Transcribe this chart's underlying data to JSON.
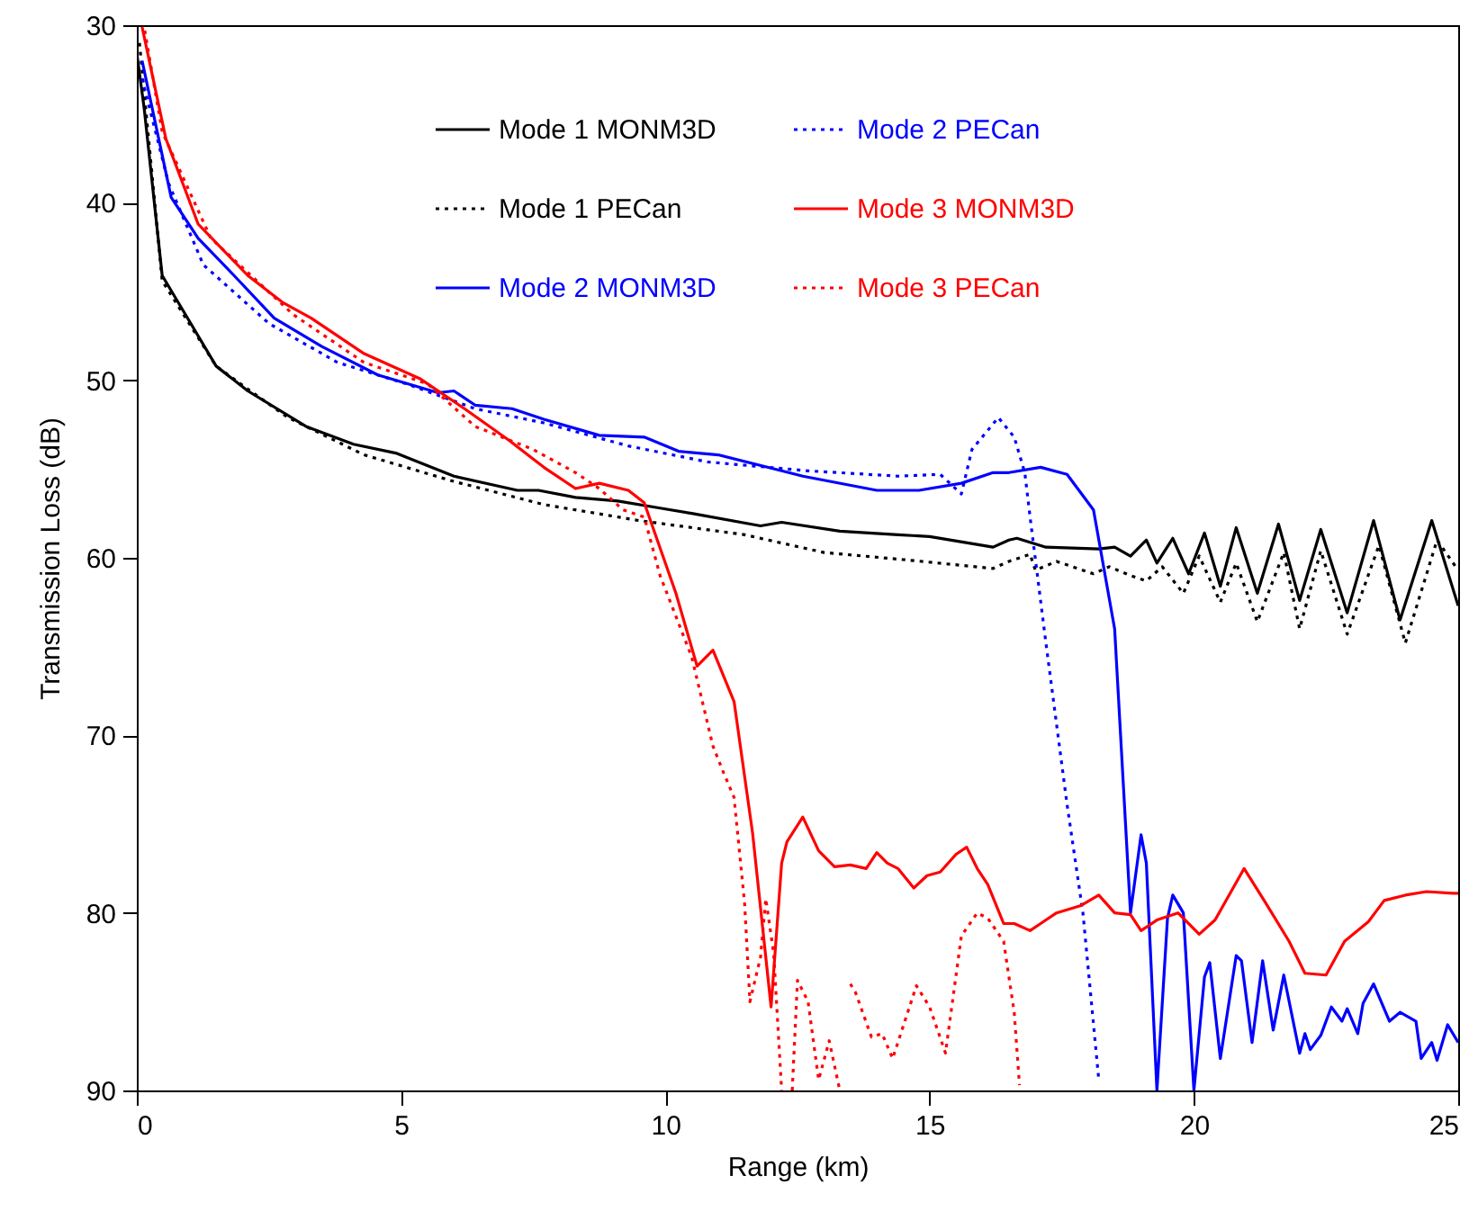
{
  "chart_data": {
    "type": "line",
    "xlabel": "Range (km)",
    "ylabel": "Transmission Loss (dB)",
    "xlim": [
      0,
      25
    ],
    "xticks": [
      0,
      5,
      10,
      15,
      20,
      25
    ],
    "ylim": [
      90,
      30
    ],
    "yticks": [
      30,
      40,
      50,
      60,
      70,
      80,
      90
    ],
    "grid": false,
    "legend": "top",
    "marker": "none",
    "series": [
      {
        "name": "Mode 1 MONM3D",
        "color": "#000000",
        "line_style": "solid",
        "x": [
          0,
          0.14,
          0.48,
          0.82,
          1.5,
          2.1,
          3.2,
          4.1,
          4.9,
          6.0,
          7.2,
          7.6,
          8.3,
          9.1,
          9.9,
          10.5,
          11.8,
          12.2,
          13.3,
          14.4,
          15.0,
          16.2,
          16.5,
          16.65,
          17.2,
          18.2,
          18.5,
          18.8,
          19.1,
          19.3,
          19.6,
          19.9,
          20.2,
          20.5,
          20.8,
          21.2,
          21.6,
          22.0,
          22.4,
          22.9,
          23.4,
          23.9,
          24.5,
          25
        ],
        "values": [
          31.6,
          34.7,
          44.1,
          45.8,
          49.2,
          50.6,
          52.6,
          53.6,
          54.1,
          55.4,
          56.2,
          56.2,
          56.6,
          56.8,
          57.2,
          57.5,
          58.2,
          58,
          58.5,
          58.7,
          58.8,
          59.4,
          59,
          58.9,
          59.4,
          59.5,
          59.4,
          59.9,
          59,
          60.3,
          58.9,
          60.9,
          58.6,
          61.6,
          58.3,
          62,
          58.1,
          62.4,
          58.4,
          63.1,
          57.9,
          63.5,
          57.9,
          62.7
        ]
      },
      {
        "name": "Mode 1 PECan",
        "color": "#000000",
        "line_style": "dotted",
        "x": [
          0.05,
          0.48,
          1.5,
          2.1,
          2.86,
          4.3,
          6.0,
          7.7,
          9.5,
          11.5,
          13,
          14.5,
          16.2,
          16.5,
          16.9,
          17,
          17.4,
          18.1,
          18.4,
          18.8,
          19.1,
          19.4,
          19.8,
          20.1,
          20.5,
          20.8,
          21.2,
          21.7,
          22.0,
          22.4,
          22.9,
          23.5,
          24.0,
          24.6,
          25
        ],
        "values": [
          31,
          44.4,
          49.2,
          50.5,
          52.1,
          54.2,
          55.7,
          57,
          57.9,
          58.7,
          59.7,
          60.1,
          60.6,
          60.2,
          59.8,
          60.7,
          60.2,
          60.9,
          60.5,
          61,
          61.3,
          60.5,
          62,
          59.9,
          62.5,
          60.3,
          63.6,
          59.7,
          64,
          59.6,
          64.3,
          59.3,
          64.8,
          59,
          60.7
        ]
      },
      {
        "name": "Mode 2 MONM3D",
        "color": "#0000ff",
        "line_style": "solid",
        "x": [
          0.1,
          0.65,
          1.16,
          1.84,
          2.6,
          3.5,
          4.56,
          5.7,
          6.0,
          6.4,
          7.1,
          7.7,
          8.75,
          9.6,
          10.25,
          11.0,
          12.2,
          12.6,
          14.0,
          14.8,
          15.6,
          16.2,
          16.5,
          17.1,
          17.6,
          18.1,
          18.5,
          18.8,
          19.0,
          19.1,
          19.3,
          19.5,
          19.6,
          19.8,
          20.0,
          20.2,
          20.3,
          20.5,
          20.8,
          20.9,
          21.1,
          21.3,
          21.5,
          21.7,
          22.0,
          22.1,
          22.2,
          22.4,
          22.6,
          22.8,
          22.9,
          23.1,
          23.2,
          23.4,
          23.7,
          23.9,
          24.2,
          24.3,
          24.5,
          24.6,
          24.8,
          25
        ],
        "values": [
          32,
          39.7,
          42,
          44.1,
          46.5,
          48.1,
          49.7,
          50.7,
          50.6,
          51.4,
          51.6,
          52.2,
          53.1,
          53.2,
          54,
          54.2,
          55.1,
          55.4,
          56.2,
          56.2,
          55.8,
          55.2,
          55.2,
          54.9,
          55.3,
          57.3,
          64,
          80,
          75.6,
          77.2,
          90,
          80.3,
          79,
          80,
          90,
          83.6,
          82.8,
          88.2,
          82.4,
          82.7,
          87.3,
          82.7,
          86.6,
          83.5,
          87.9,
          86.8,
          87.7,
          86.9,
          85.3,
          86.1,
          85.4,
          86.8,
          85.1,
          84,
          86.1,
          85.6,
          86.1,
          88.2,
          87.3,
          88.3,
          86.3,
          87.3
        ]
      },
      {
        "name": "Mode 2 PECan",
        "color": "#0000ff",
        "line_style": "dotted",
        "x": [
          0.1,
          0.6,
          1.26,
          2.5,
          3.8,
          5.1,
          6.4,
          7.7,
          9.3,
          10.8,
          12.7,
          14.4,
          15.2,
          15.6,
          15.8,
          16.3,
          16.6,
          16.8,
          16.9,
          17.2,
          17.6,
          17.9,
          18.2
        ],
        "values": [
          33,
          38.9,
          43.5,
          46.8,
          49,
          50.2,
          51.6,
          52.4,
          53.7,
          54.6,
          55.1,
          55.4,
          55.3,
          56.4,
          53.9,
          52.1,
          53.2,
          55.2,
          57.7,
          64.8,
          73.9,
          80,
          89.4
        ]
      },
      {
        "name": "Mode 3 MONM3D",
        "color": "#ff0000",
        "line_style": "solid",
        "x": [
          0.1,
          0.55,
          1.16,
          2.1,
          2.75,
          3.3,
          4.3,
          5.35,
          6.2,
          7.05,
          7.7,
          8.3,
          8.75,
          9.3,
          9.6,
          10.2,
          10.6,
          10.9,
          11.3,
          11.65,
          12.0,
          12.2,
          12.3,
          12.6,
          12.9,
          13.2,
          13.5,
          13.8,
          14.0,
          14.2,
          14.4,
          14.7,
          14.95,
          15.2,
          15.5,
          15.7,
          15.9,
          16.1,
          16.4,
          16.6,
          16.9,
          17.1,
          17.4,
          17.85,
          18.2,
          18.5,
          18.8,
          19.0,
          19.3,
          19.7,
          20.1,
          20.4,
          20.95,
          21.35,
          21.8,
          22.1,
          22.5,
          22.85,
          23.3,
          23.6,
          24.0,
          24.4,
          24.9,
          25
        ],
        "values": [
          30.1,
          36.4,
          41.2,
          44.1,
          45.6,
          46.5,
          48.5,
          49.9,
          51.6,
          53.4,
          54.9,
          56.1,
          55.8,
          56.2,
          56.9,
          62,
          66.1,
          65.2,
          68.1,
          75.5,
          85.3,
          77.2,
          76,
          74.6,
          76.5,
          77.4,
          77.3,
          77.5,
          76.6,
          77.2,
          77.5,
          78.6,
          77.9,
          77.7,
          76.7,
          76.3,
          77.5,
          78.4,
          80.6,
          80.6,
          81,
          80.6,
          80,
          79.6,
          79,
          80,
          80.1,
          81,
          80.4,
          80,
          81.2,
          80.4,
          77.5,
          79.4,
          81.6,
          83.4,
          83.5,
          81.6,
          80.5,
          79.3,
          79,
          78.8,
          78.9,
          78.9
        ]
      },
      {
        "name": "Mode 3 PECan",
        "color": "#ff0000",
        "line_style": "dotted",
        "x": [
          0.15,
          0.48,
          1.4,
          2.96,
          4.3,
          5.5,
          6.4,
          7.5,
          8.3,
          8.75,
          9.2,
          9.6,
          9.9,
          10.5,
          10.9,
          11.1,
          11.3,
          11.5,
          11.6,
          11.8,
          11.9,
          12.05,
          12.2,
          12.3,
          12.4,
          12.5,
          12.7,
          12.9,
          13.1,
          13.3,
          13.4,
          13.5,
          13.6,
          13.9,
          14.1,
          14.3,
          14.75,
          15.0,
          15.3,
          15.6,
          15.9,
          16.1,
          16.4,
          16.6,
          16.7
        ],
        "values": [
          30.3,
          36,
          42,
          46.3,
          49,
          50.2,
          52.6,
          53.9,
          55.2,
          56.1,
          57.3,
          57.7,
          61,
          65.6,
          70.6,
          72.1,
          73.5,
          79.5,
          85,
          82.5,
          79.2,
          82.3,
          90,
          null,
          90,
          83.8,
          85,
          89.4,
          87.2,
          90,
          null,
          84,
          84.5,
          87,
          86.8,
          88.2,
          84.1,
          85.3,
          87.9,
          81.3,
          80,
          80.3,
          81.6,
          85.6,
          89.7
        ]
      }
    ]
  }
}
